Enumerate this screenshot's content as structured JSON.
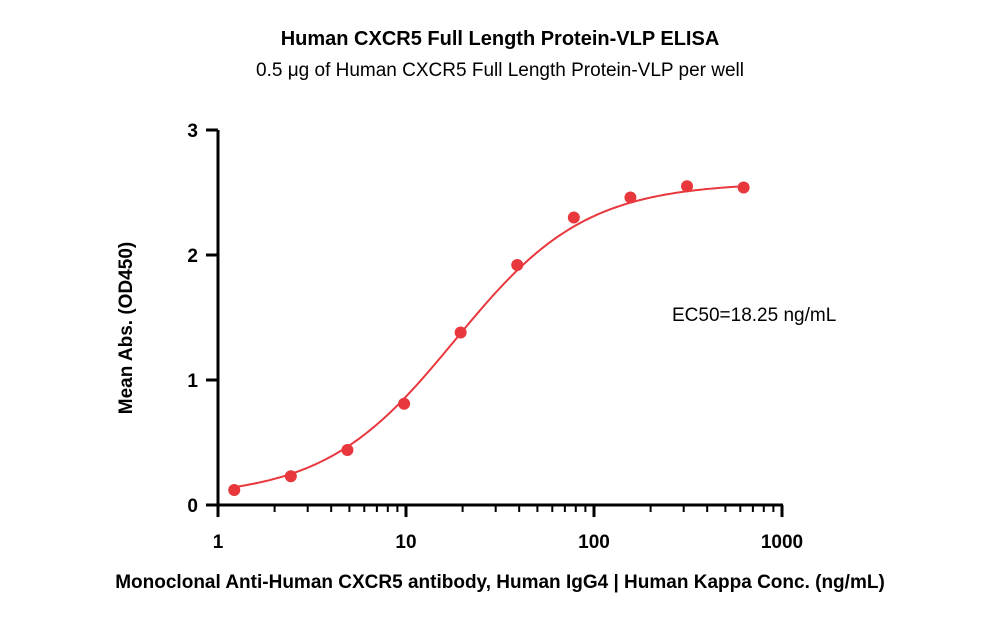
{
  "chart_data": {
    "type": "scatter",
    "title": "Human CXCR5 Full Length Protein-VLP ELISA",
    "subtitle": "0.5 μg of Human CXCR5 Full Length Protein-VLP per well",
    "xlabel": "Monoclonal Anti-Human CXCR5 antibody, Human IgG4 | Human Kappa Conc. (ng/mL)",
    "ylabel": "Mean Abs. (OD450)",
    "xscale": "log",
    "xlim": [
      1,
      1000
    ],
    "ylim": [
      0,
      3
    ],
    "xticks": [
      1,
      10,
      100,
      1000
    ],
    "xtick_labels": [
      "1",
      "10",
      "100",
      "1000"
    ],
    "yticks": [
      0,
      1,
      2,
      3
    ],
    "ytick_labels": [
      "0",
      "1",
      "2",
      "3"
    ],
    "grid": false,
    "legend": "none",
    "annotation": "EC50=18.25 ng/mL",
    "color": "#e8383d",
    "series": [
      {
        "x": [
          1.22,
          2.44,
          4.88,
          9.77,
          19.53,
          39.06,
          78.13,
          156.25,
          312.5,
          625
        ],
        "y": [
          0.12,
          0.23,
          0.44,
          0.81,
          1.38,
          1.92,
          2.3,
          2.46,
          2.55,
          2.54
        ]
      }
    ],
    "fit_curve": {
      "type": "4PL",
      "bottom": 0.06,
      "top": 2.58,
      "ec50": 18.25,
      "hill": 1.25
    }
  }
}
